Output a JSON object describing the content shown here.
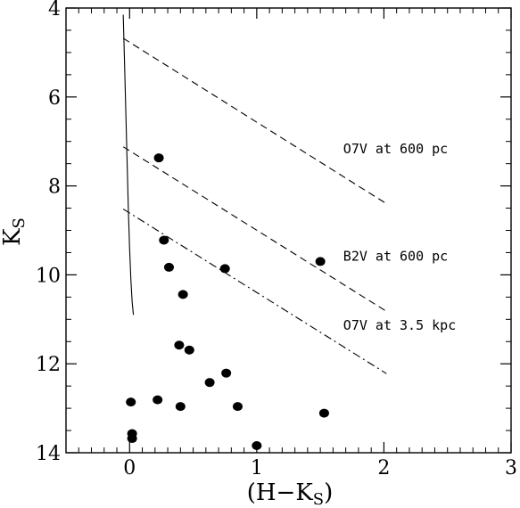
{
  "chart_data": {
    "type": "scatter",
    "title": "",
    "xlabel": "(H−K",
    "xlabel_sub": "S",
    "xlabel_close": ")",
    "ylabel": "K",
    "ylabel_sub": "S",
    "xlim": [
      -0.5,
      3
    ],
    "ylim": [
      14,
      4
    ],
    "y_inverted": true,
    "grid": false,
    "x_ticks": [
      0,
      1,
      2,
      3
    ],
    "y_ticks": [
      4,
      6,
      8,
      10,
      12,
      14
    ],
    "x_tick_labels": [
      "0",
      "1",
      "2",
      "3"
    ],
    "y_tick_labels": [
      "4",
      "6",
      "8",
      "10",
      "12",
      "14"
    ],
    "points": [
      {
        "x": 0.23,
        "y": 7.37
      },
      {
        "x": 1.5,
        "y": 9.7
      },
      {
        "x": 0.27,
        "y": 9.22
      },
      {
        "x": 0.31,
        "y": 9.83
      },
      {
        "x": 0.75,
        "y": 9.86
      },
      {
        "x": 0.42,
        "y": 10.44
      },
      {
        "x": 0.39,
        "y": 11.58
      },
      {
        "x": 0.47,
        "y": 11.69
      },
      {
        "x": 0.76,
        "y": 12.21
      },
      {
        "x": 0.63,
        "y": 12.42
      },
      {
        "x": 0.01,
        "y": 12.86
      },
      {
        "x": 0.22,
        "y": 12.81
      },
      {
        "x": 0.4,
        "y": 12.96
      },
      {
        "x": 0.85,
        "y": 12.96
      },
      {
        "x": 1.53,
        "y": 13.11
      },
      {
        "x": 0.02,
        "y": 13.57
      },
      {
        "x": 0.02,
        "y": 13.68
      },
      {
        "x": 1.0,
        "y": 13.84
      }
    ],
    "curve": {
      "style": "solid",
      "points": [
        [
          -0.05,
          4.15
        ],
        [
          -0.04,
          5.2
        ],
        [
          -0.03,
          6.3
        ],
        [
          -0.02,
          7.4
        ],
        [
          -0.01,
          8.5
        ],
        [
          0.0,
          9.4
        ],
        [
          0.01,
          10.1
        ],
        [
          0.02,
          10.6
        ],
        [
          0.03,
          10.9
        ]
      ]
    },
    "reddening_lines": [
      {
        "label": "O7V at 600 pc",
        "style": "dashed",
        "x": [
          -0.05,
          2.02
        ],
        "y": [
          4.68,
          8.4
        ],
        "label_x": 1.68,
        "label_y": 7.27
      },
      {
        "label": "B2V at 600 pc",
        "style": "dashed",
        "x": [
          -0.05,
          2.02
        ],
        "y": [
          7.12,
          10.82
        ],
        "label_x": 1.68,
        "label_y": 9.68
      },
      {
        "label": "O7V at 3.5 kpc",
        "style": "dashdot",
        "x": [
          -0.05,
          2.02
        ],
        "y": [
          8.52,
          12.22
        ],
        "label_x": 1.68,
        "label_y": 11.23
      }
    ]
  }
}
